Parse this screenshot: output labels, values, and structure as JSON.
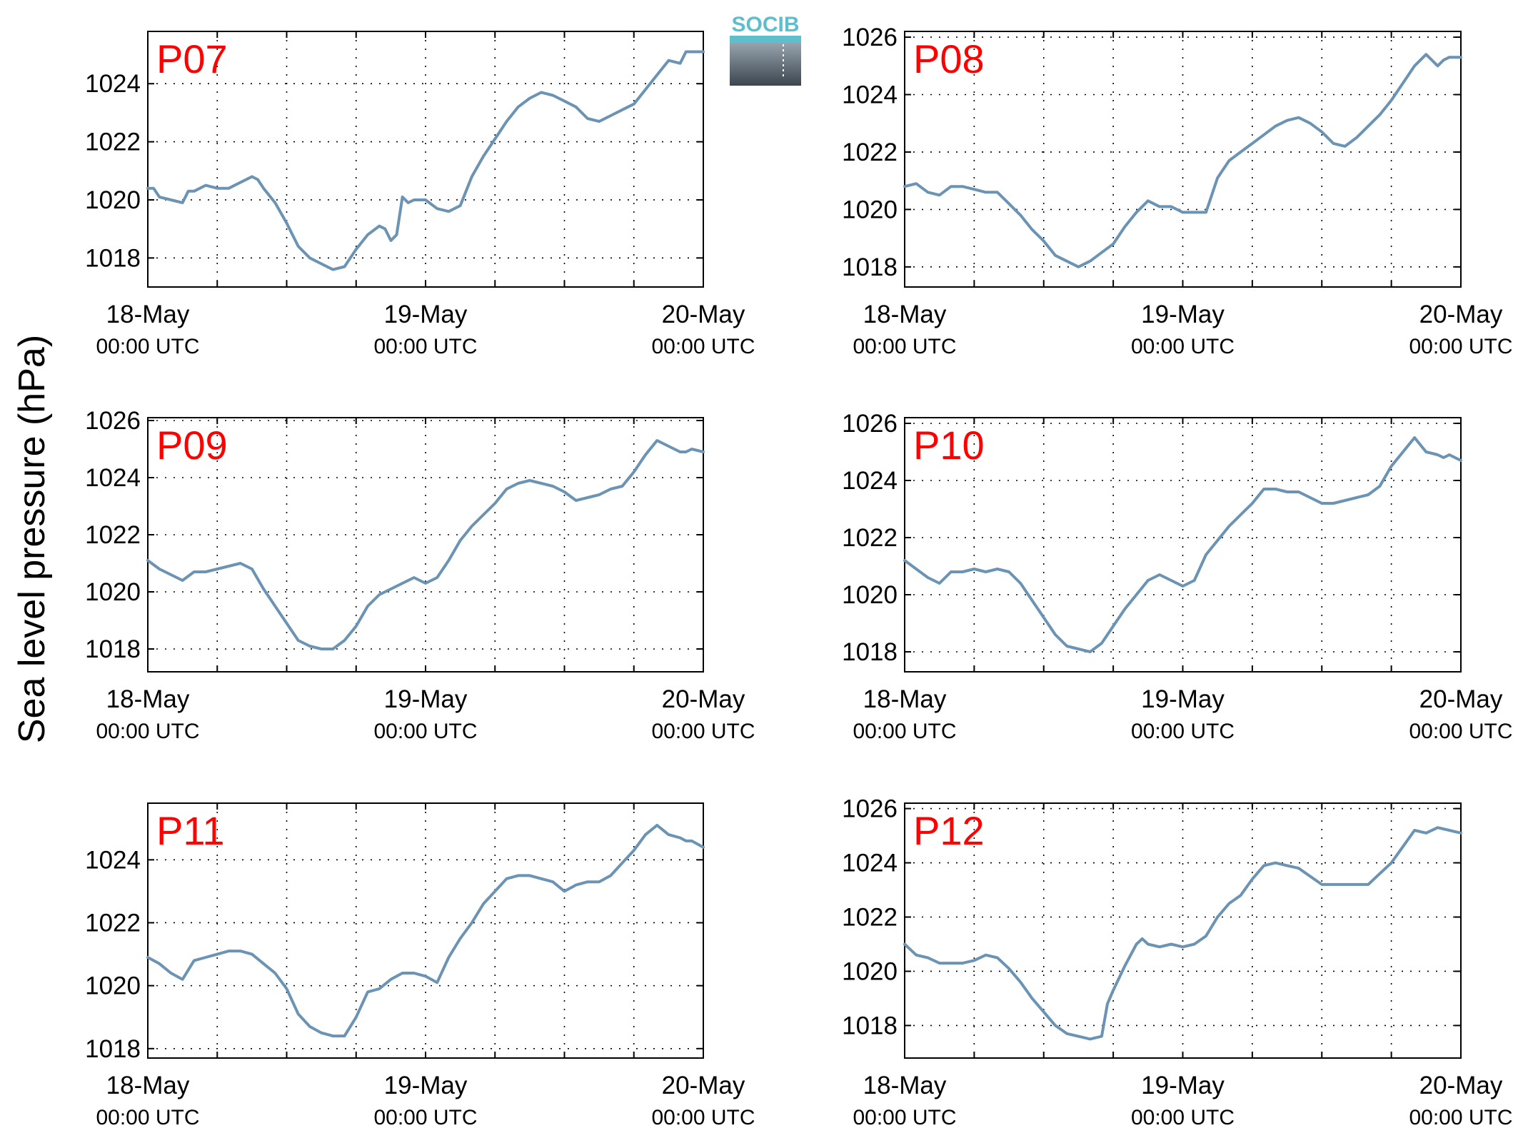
{
  "figure": {
    "ylabel": "Sea level pressure (hPa)",
    "logo_text": "SOCIB"
  },
  "colors": {
    "line": "#6b93b4",
    "title": "#ff0000",
    "grid": "#000000"
  },
  "chart_data": [
    {
      "type": "line",
      "title": "P07",
      "x_ticks": [
        {
          "date": "18-May",
          "time": "00:00 UTC",
          "hours": 0
        },
        {
          "date": "19-May",
          "time": "00:00 UTC",
          "hours": 24
        },
        {
          "date": "20-May",
          "time": "00:00 UTC",
          "hours": 48
        }
      ],
      "yticks": [
        1018,
        1020,
        1022,
        1024
      ],
      "ylim": [
        1017,
        1025.8
      ],
      "xlim_hours": [
        0,
        48
      ],
      "grid": true,
      "x_hours": [
        0,
        0.5,
        1,
        2,
        3,
        3.5,
        4,
        5,
        6,
        7,
        8,
        9,
        9.5,
        10,
        11,
        12,
        13,
        14,
        15,
        16,
        17,
        17.5,
        18,
        19,
        20,
        20.5,
        21,
        21.5,
        22,
        22.5,
        23,
        24,
        25,
        26,
        27,
        28,
        29,
        30,
        31,
        32,
        33,
        34,
        35,
        36,
        37,
        38,
        39,
        40,
        41,
        42,
        43,
        44,
        45,
        46,
        46.5,
        47,
        48
      ],
      "y": [
        1020.4,
        1020.4,
        1020.1,
        1020.0,
        1019.9,
        1020.3,
        1020.3,
        1020.5,
        1020.4,
        1020.4,
        1020.6,
        1020.8,
        1020.7,
        1020.4,
        1019.9,
        1019.2,
        1018.4,
        1018.0,
        1017.8,
        1017.6,
        1017.7,
        1018.0,
        1018.3,
        1018.8,
        1019.1,
        1019.0,
        1018.6,
        1018.8,
        1020.1,
        1019.9,
        1020.0,
        1020.0,
        1019.7,
        1019.6,
        1019.8,
        1020.8,
        1021.5,
        1022.1,
        1022.7,
        1023.2,
        1023.5,
        1023.7,
        1023.6,
        1023.4,
        1023.2,
        1022.8,
        1022.7,
        1022.9,
        1023.1,
        1023.3,
        1023.8,
        1024.3,
        1024.8,
        1024.7,
        1025.1,
        1025.1,
        1025.1
      ]
    },
    {
      "type": "line",
      "title": "P08",
      "x_ticks": [
        {
          "date": "18-May",
          "time": "00:00 UTC",
          "hours": 0
        },
        {
          "date": "19-May",
          "time": "00:00 UTC",
          "hours": 24
        },
        {
          "date": "20-May",
          "time": "00:00 UTC",
          "hours": 48
        }
      ],
      "yticks": [
        1018,
        1020,
        1022,
        1024,
        1026
      ],
      "ylim": [
        1017.3,
        1026.2
      ],
      "xlim_hours": [
        0,
        48
      ],
      "grid": true,
      "x_hours": [
        0,
        1,
        2,
        3,
        4,
        5,
        6,
        7,
        8,
        9,
        10,
        11,
        12,
        13,
        14,
        15,
        16,
        17,
        18,
        19,
        20,
        21,
        22,
        23,
        24,
        25,
        26,
        26.5,
        27,
        28,
        29,
        30,
        31,
        32,
        33,
        34,
        35,
        36,
        37,
        38,
        39,
        40,
        41,
        42,
        43,
        44,
        45,
        46,
        46.5,
        47,
        48
      ],
      "y": [
        1020.8,
        1020.9,
        1020.6,
        1020.5,
        1020.8,
        1020.8,
        1020.7,
        1020.6,
        1020.6,
        1020.2,
        1019.8,
        1019.3,
        1018.9,
        1018.4,
        1018.2,
        1018.0,
        1018.2,
        1018.5,
        1018.8,
        1019.4,
        1019.9,
        1020.3,
        1020.1,
        1020.1,
        1019.9,
        1019.9,
        1019.9,
        1020.5,
        1021.1,
        1021.7,
        1022.0,
        1022.3,
        1022.6,
        1022.9,
        1023.1,
        1023.2,
        1023.0,
        1022.7,
        1022.3,
        1022.2,
        1022.5,
        1022.9,
        1023.3,
        1023.8,
        1024.4,
        1025.0,
        1025.4,
        1025.0,
        1025.2,
        1025.3,
        1025.3
      ]
    },
    {
      "type": "line",
      "title": "P09",
      "x_ticks": [
        {
          "date": "18-May",
          "time": "00:00 UTC",
          "hours": 0
        },
        {
          "date": "19-May",
          "time": "00:00 UTC",
          "hours": 24
        },
        {
          "date": "20-May",
          "time": "00:00 UTC",
          "hours": 48
        }
      ],
      "yticks": [
        1018,
        1020,
        1022,
        1024,
        1026
      ],
      "ylim": [
        1017.2,
        1026.1
      ],
      "xlim_hours": [
        0,
        48
      ],
      "grid": true,
      "x_hours": [
        0,
        1,
        2,
        3,
        4,
        5,
        6,
        7,
        8,
        9,
        10,
        11,
        12,
        13,
        14,
        15,
        16,
        17,
        18,
        19,
        20,
        21,
        22,
        23,
        24,
        25,
        26,
        27,
        28,
        29,
        30,
        31,
        32,
        33,
        34,
        35,
        36,
        37,
        38,
        39,
        40,
        41,
        42,
        43,
        44,
        45,
        46,
        46.5,
        47,
        48
      ],
      "y": [
        1021.1,
        1020.8,
        1020.6,
        1020.4,
        1020.7,
        1020.7,
        1020.8,
        1020.9,
        1021.0,
        1020.8,
        1020.1,
        1019.5,
        1018.9,
        1018.3,
        1018.1,
        1018.0,
        1018.0,
        1018.3,
        1018.8,
        1019.5,
        1019.9,
        1020.1,
        1020.3,
        1020.5,
        1020.3,
        1020.5,
        1021.1,
        1021.8,
        1022.3,
        1022.7,
        1023.1,
        1023.6,
        1023.8,
        1023.9,
        1023.8,
        1023.7,
        1023.5,
        1023.2,
        1023.3,
        1023.4,
        1023.6,
        1023.7,
        1024.2,
        1024.8,
        1025.3,
        1025.1,
        1024.9,
        1024.9,
        1025.0,
        1024.9
      ]
    },
    {
      "type": "line",
      "title": "P10",
      "x_ticks": [
        {
          "date": "18-May",
          "time": "00:00 UTC",
          "hours": 0
        },
        {
          "date": "19-May",
          "time": "00:00 UTC",
          "hours": 24
        },
        {
          "date": "20-May",
          "time": "00:00 UTC",
          "hours": 48
        }
      ],
      "yticks": [
        1018,
        1020,
        1022,
        1024,
        1026
      ],
      "ylim": [
        1017.3,
        1026.2
      ],
      "xlim_hours": [
        0,
        48
      ],
      "grid": true,
      "x_hours": [
        0,
        1,
        2,
        3,
        4,
        5,
        6,
        7,
        8,
        9,
        10,
        11,
        12,
        13,
        14,
        15,
        16,
        17,
        18,
        19,
        20,
        21,
        22,
        23,
        24,
        25,
        26,
        27,
        28,
        29,
        30,
        31,
        32,
        33,
        34,
        35,
        36,
        37,
        38,
        39,
        40,
        41,
        42,
        43,
        44,
        45,
        46,
        46.5,
        47,
        48
      ],
      "y": [
        1021.2,
        1020.9,
        1020.6,
        1020.4,
        1020.8,
        1020.8,
        1020.9,
        1020.8,
        1020.9,
        1020.8,
        1020.4,
        1019.8,
        1019.2,
        1018.6,
        1018.2,
        1018.1,
        1018.0,
        1018.3,
        1018.9,
        1019.5,
        1020.0,
        1020.5,
        1020.7,
        1020.5,
        1020.3,
        1020.5,
        1021.4,
        1021.9,
        1022.4,
        1022.8,
        1023.2,
        1023.7,
        1023.7,
        1023.6,
        1023.6,
        1023.4,
        1023.2,
        1023.2,
        1023.3,
        1023.4,
        1023.5,
        1023.8,
        1024.5,
        1025.0,
        1025.5,
        1025.0,
        1024.9,
        1024.8,
        1024.9,
        1024.7
      ]
    },
    {
      "type": "line",
      "title": "P11",
      "x_ticks": [
        {
          "date": "18-May",
          "time": "00:00 UTC",
          "hours": 0
        },
        {
          "date": "19-May",
          "time": "00:00 UTC",
          "hours": 24
        },
        {
          "date": "20-May",
          "time": "00:00 UTC",
          "hours": 48
        }
      ],
      "yticks": [
        1018,
        1020,
        1022,
        1024
      ],
      "ylim": [
        1017.7,
        1025.8
      ],
      "xlim_hours": [
        0,
        48
      ],
      "grid": true,
      "x_hours": [
        0,
        1,
        2,
        3,
        4,
        5,
        6,
        7,
        8,
        9,
        10,
        11,
        12,
        13,
        14,
        15,
        16,
        17,
        18,
        19,
        20,
        21,
        22,
        23,
        24,
        25,
        26,
        27,
        28,
        29,
        30,
        31,
        32,
        33,
        34,
        35,
        36,
        37,
        38,
        39,
        40,
        41,
        42,
        43,
        44,
        45,
        46,
        46.5,
        47,
        48
      ],
      "y": [
        1020.9,
        1020.7,
        1020.4,
        1020.2,
        1020.8,
        1020.9,
        1021.0,
        1021.1,
        1021.1,
        1021.0,
        1020.7,
        1020.4,
        1019.9,
        1019.1,
        1018.7,
        1018.5,
        1018.4,
        1018.4,
        1019.0,
        1019.8,
        1019.9,
        1020.2,
        1020.4,
        1020.4,
        1020.3,
        1020.1,
        1020.9,
        1021.5,
        1022.0,
        1022.6,
        1023.0,
        1023.4,
        1023.5,
        1023.5,
        1023.4,
        1023.3,
        1023.0,
        1023.2,
        1023.3,
        1023.3,
        1023.5,
        1023.9,
        1024.3,
        1024.8,
        1025.1,
        1024.8,
        1024.7,
        1024.6,
        1024.6,
        1024.4
      ]
    },
    {
      "type": "line",
      "title": "P12",
      "x_ticks": [
        {
          "date": "18-May",
          "time": "00:00 UTC",
          "hours": 0
        },
        {
          "date": "19-May",
          "time": "00:00 UTC",
          "hours": 24
        },
        {
          "date": "20-May",
          "time": "00:00 UTC",
          "hours": 48
        }
      ],
      "yticks": [
        1018,
        1020,
        1022,
        1024,
        1026
      ],
      "ylim": [
        1016.8,
        1026.2
      ],
      "xlim_hours": [
        0,
        48
      ],
      "grid": true,
      "x_hours": [
        0,
        1,
        2,
        3,
        4,
        5,
        6,
        7,
        8,
        9,
        10,
        11,
        12,
        13,
        14,
        15,
        16,
        17,
        17.5,
        18,
        19,
        20,
        20.5,
        21,
        22,
        23,
        24,
        25,
        26,
        27,
        28,
        29,
        30,
        31,
        32,
        33,
        34,
        35,
        36,
        37,
        38,
        39,
        40,
        41,
        42,
        43,
        44,
        45,
        46,
        47,
        48
      ],
      "y": [
        1021.0,
        1020.6,
        1020.5,
        1020.3,
        1020.3,
        1020.3,
        1020.4,
        1020.6,
        1020.5,
        1020.1,
        1019.6,
        1019.0,
        1018.5,
        1018.0,
        1017.7,
        1017.6,
        1017.5,
        1017.6,
        1018.8,
        1019.3,
        1020.2,
        1021.0,
        1021.2,
        1021.0,
        1020.9,
        1021.0,
        1020.9,
        1021.0,
        1021.3,
        1022.0,
        1022.5,
        1022.8,
        1023.4,
        1023.9,
        1024.0,
        1023.9,
        1023.8,
        1023.5,
        1023.2,
        1023.2,
        1023.2,
        1023.2,
        1023.2,
        1023.6,
        1024.0,
        1024.6,
        1025.2,
        1025.1,
        1025.3,
        1025.2,
        1025.1
      ]
    }
  ]
}
